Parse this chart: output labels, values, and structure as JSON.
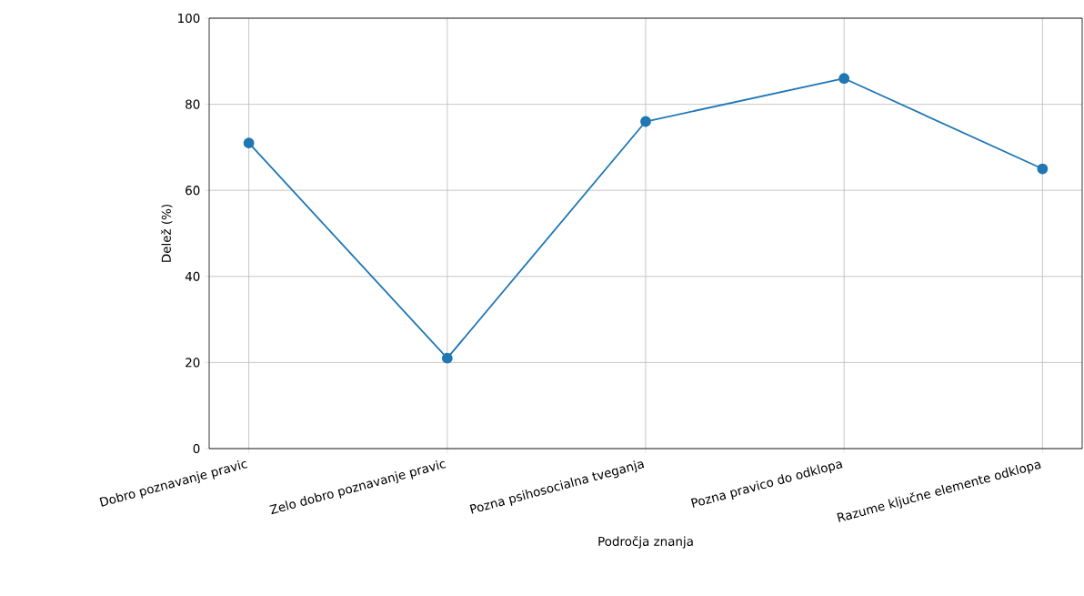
{
  "chart_data": {
    "type": "line",
    "xlabel": "Področja znanja",
    "ylabel": "Delež (%)",
    "categories": [
      "Dobro poznavanje pravic",
      "Zelo dobro poznavanje pravic",
      "Pozna psihosocialna tveganja",
      "Pozna pravico do odklopa",
      "Razume ključne elemente odklopa"
    ],
    "values": [
      71,
      21,
      76,
      86,
      65
    ],
    "color": "#1f77b4",
    "marker": "circle",
    "line_style": "solid",
    "ylim": [
      0,
      100
    ],
    "yticks": [
      0,
      20,
      40,
      60,
      80,
      100
    ],
    "grid": true
  }
}
